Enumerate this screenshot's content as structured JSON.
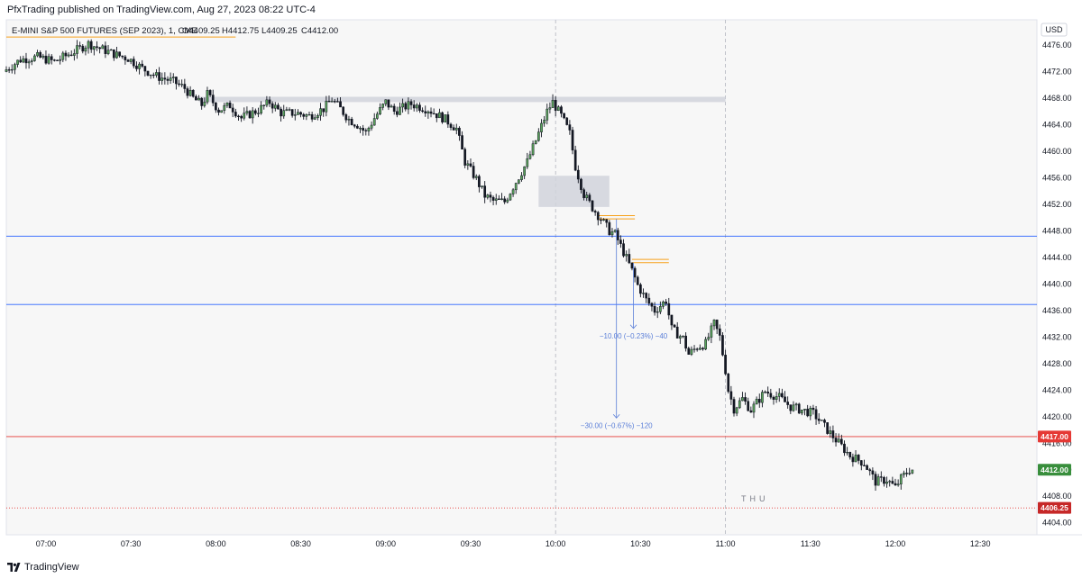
{
  "header": {
    "published": "PfxTrading published on TradingView.com, Aug 27, 2023 08:22 UTC-4"
  },
  "footer": {
    "brand": "TradingView",
    "logo_icon": "tradingview-logo-icon"
  },
  "chart_data": {
    "type": "candlestick",
    "symbol_line": {
      "name": "E-MINI S&P 500 FUTURES (SEP 2023), 1, CME",
      "open": "O4409.25",
      "high": "H4412.75",
      "low": "L4409.25",
      "close": "C4412.00"
    },
    "currency": "USD",
    "y_ticks": [
      4476,
      4472,
      4468,
      4464,
      4460,
      4456,
      4452,
      4448,
      4444,
      4440,
      4436,
      4432,
      4428,
      4424,
      4420,
      4416,
      4412,
      4408,
      4404
    ],
    "y_tick_labels": [
      "4476.00",
      "4472.00",
      "4468.00",
      "4464.00",
      "4460.00",
      "4456.00",
      "4452.00",
      "4448.00",
      "4444.00",
      "4440.00",
      "4436.00",
      "4432.00",
      "4428.00",
      "4424.00",
      "4420.00",
      "4416.00",
      "4412.00",
      "4408.00",
      "4404.00"
    ],
    "x_ticks": [
      "07:00",
      "07:30",
      "08:00",
      "08:30",
      "09:00",
      "09:30",
      "10:00",
      "10:30",
      "11:00",
      "11:30",
      "12:00",
      "12:30"
    ],
    "x_tick_minutes": [
      420,
      450,
      480,
      510,
      540,
      570,
      600,
      630,
      660,
      690,
      720,
      750
    ],
    "x_range_minutes": [
      406,
      770
    ],
    "y_range": [
      4402.2,
      4479.8
    ],
    "day_label": "THU",
    "price_path": [
      [
        406,
        4472.0
      ],
      [
        412,
        4473.8
      ],
      [
        418,
        4474.2
      ],
      [
        424,
        4473.5
      ],
      [
        430,
        4474.8
      ],
      [
        436,
        4476.2
      ],
      [
        440,
        4475.5
      ],
      [
        446,
        4474.5
      ],
      [
        450,
        4474.0
      ],
      [
        455,
        4472.5
      ],
      [
        460,
        4471.3
      ],
      [
        466,
        4470.5
      ],
      [
        470,
        4469.5
      ],
      [
        473,
        4468.0
      ],
      [
        476,
        4467.0
      ],
      [
        478,
        4468.6
      ],
      [
        482,
        4466.2
      ],
      [
        486,
        4466.9
      ],
      [
        490,
        4465.0
      ],
      [
        496,
        4466.2
      ],
      [
        500,
        4467.4
      ],
      [
        504,
        4465.8
      ],
      [
        510,
        4465.7
      ],
      [
        514,
        4465.3
      ],
      [
        519,
        4466.4
      ],
      [
        522,
        4467.8
      ],
      [
        525,
        4466.4
      ],
      [
        528,
        4464.8
      ],
      [
        531,
        4464.0
      ],
      [
        534,
        4462.8
      ],
      [
        537,
        4465.0
      ],
      [
        541,
        4467.4
      ],
      [
        544,
        4466.0
      ],
      [
        550,
        4467.1
      ],
      [
        556,
        4466.3
      ],
      [
        562,
        4464.8
      ],
      [
        566,
        4463.4
      ],
      [
        569,
        4458.4
      ],
      [
        573,
        4455.8
      ],
      [
        576,
        4453.3
      ],
      [
        579,
        4452.5
      ],
      [
        583,
        4452.4
      ],
      [
        587,
        4455.4
      ],
      [
        591,
        4458.4
      ],
      [
        595,
        4462.7
      ],
      [
        598,
        4466.0
      ],
      [
        600,
        4467.4
      ],
      [
        603,
        4465.3
      ],
      [
        606,
        4462.7
      ],
      [
        608,
        4457.7
      ],
      [
        611,
        4453.5
      ],
      [
        614,
        4451.5
      ],
      [
        617,
        4449.8
      ],
      [
        620,
        4448.0
      ],
      [
        622,
        4447.5
      ],
      [
        625,
        4444.8
      ],
      [
        628,
        4442.0
      ],
      [
        630,
        4439.8
      ],
      [
        633,
        4437.6
      ],
      [
        636,
        4436.0
      ],
      [
        640,
        4437.5
      ],
      [
        642,
        4433.2
      ],
      [
        646,
        4431.8
      ],
      [
        648,
        4429.4
      ],
      [
        651,
        4430.5
      ],
      [
        654,
        4431.0
      ],
      [
        657,
        4434.0
      ],
      [
        659,
        4432.0
      ],
      [
        661,
        4427.0
      ],
      [
        662,
        4424.0
      ],
      [
        664,
        4421.2
      ],
      [
        667,
        4422.7
      ],
      [
        670,
        4421.0
      ],
      [
        675,
        4423.8
      ],
      [
        680,
        4422.9
      ],
      [
        684,
        4421.5
      ],
      [
        688,
        4421.0
      ],
      [
        692,
        4420.5
      ],
      [
        697,
        4418.0
      ],
      [
        700,
        4416.5
      ],
      [
        705,
        4414.1
      ],
      [
        710,
        4413.0
      ],
      [
        714,
        4410.2
      ],
      [
        718,
        4410.5
      ],
      [
        721,
        4409.3
      ],
      [
        723,
        4410.7
      ],
      [
        726,
        4412.0
      ]
    ],
    "horizontal_lines": [
      {
        "name": "blue-level-upper",
        "value": 4447.2,
        "color": "#2962ff"
      },
      {
        "name": "blue-level-lower",
        "value": 4436.9,
        "color": "#2962ff"
      },
      {
        "name": "red-level",
        "value": 4417.0,
        "color": "#e53935",
        "label": "4417.00"
      },
      {
        "name": "red-dotted-level",
        "value": 4406.25,
        "color": "#e53935",
        "label": "4406.25",
        "dotted": true
      }
    ],
    "orange_lines": [
      {
        "value": 4477.2,
        "x_start": 406,
        "x_end": 487
      },
      {
        "value": 4450.3,
        "x_start": 615,
        "x_end": 628
      },
      {
        "value": 4449.8,
        "x_start": 615,
        "x_end": 628
      },
      {
        "value": 4443.7,
        "x_start": 627,
        "x_end": 640
      },
      {
        "value": 4443.2,
        "x_start": 627,
        "x_end": 640
      }
    ],
    "zones": [
      {
        "name": "upper-resistance-zone",
        "x_start": 474,
        "x_end": 660,
        "y_low": 4467.4,
        "y_high": 4468.2
      },
      {
        "name": "fvg-zone",
        "x_start": 594,
        "x_end": 619,
        "y_low": 4451.6,
        "y_high": 4456.3
      }
    ],
    "measures": [
      {
        "text": "−10.00 (−0.23%) −40",
        "x": 627.5,
        "y_from": 4443.2,
        "y_to": 4433.3
      },
      {
        "text": "−30.00 (−0.67%) −120",
        "x": 621.5,
        "y_from": 4449.8,
        "y_to": 4419.8
      }
    ],
    "price_badges": [
      {
        "label": "4417.00",
        "value": 4417.0,
        "color": "#e53935"
      },
      {
        "label": "4412.00",
        "value": 4412.0,
        "color": "#388e3c"
      },
      {
        "label": "4406.25",
        "value": 4406.25,
        "color": "#c62828"
      }
    ],
    "vertical_separators": [
      600,
      660
    ]
  }
}
